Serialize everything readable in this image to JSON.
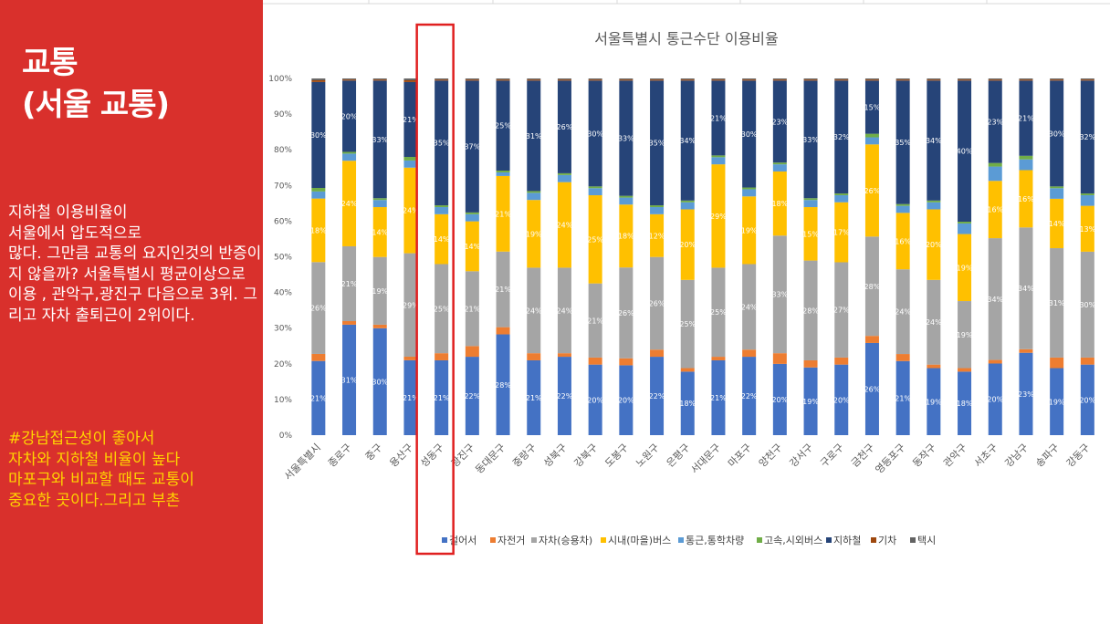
{
  "slide": {
    "title_line1": "교통",
    "title_line2": "(서울 교통)",
    "body": "지하철 이용비율이\n서울에서 압도적으로\n많다. 그만큼 교통의 요지인것의 반증이지 않을까? 서울특별시 평균이상으로 이용 , 관악구,광진구 다음으로 3위. 그리고 자차 출퇴근이 2위이다.",
    "highlight": "#강남접근성이 좋아서\n자차와 지하철 비율이 높다\n마포구와 비교할 때도 교통이\n중요한 곳이다.그리고 부촌",
    "panel_color": "#d9302c",
    "highlight_color": "#ffd400",
    "highlight_box_color": "#e02020"
  },
  "chart_data": {
    "type": "bar",
    "stacked": true,
    "percent": true,
    "title": "서울특별시 통근수단 이용비율",
    "ylim": [
      0,
      100
    ],
    "y_ticks": [
      "0%",
      "10%",
      "20%",
      "30%",
      "40%",
      "50%",
      "60%",
      "70%",
      "80%",
      "90%",
      "100%"
    ],
    "grid": false,
    "legend_position": "bottom",
    "highlighted_category": "성동구",
    "categories": [
      "서울특별시",
      "종로구",
      "중구",
      "용산구",
      "성동구",
      "광진구",
      "동대문구",
      "중랑구",
      "성북구",
      "강북구",
      "도봉구",
      "노원구",
      "은평구",
      "서대문구",
      "마포구",
      "양천구",
      "강서구",
      "구로구",
      "금천구",
      "영등포구",
      "동작구",
      "관악구",
      "서초구",
      "강남구",
      "송파구",
      "강동구"
    ],
    "series": [
      {
        "name": "걸어서",
        "color": "#4472c4",
        "values": [
          21,
          31,
          30,
          21,
          21,
          22,
          28,
          21,
          22,
          20,
          20,
          22,
          18,
          21,
          22,
          20,
          19,
          20,
          26,
          21,
          19,
          18,
          20,
          23,
          19,
          20
        ],
        "labels": [
          "21%",
          "31%",
          "30%",
          "21%",
          "21%",
          "22%",
          "28%",
          "21%",
          "22%",
          "20%",
          "20%",
          "22%",
          "18%",
          "21%",
          "22%",
          "20%",
          "19%",
          "20%",
          "26%",
          "21%",
          "19%",
          "18%",
          "20%",
          "23%",
          "19%",
          "20%"
        ]
      },
      {
        "name": "자전거",
        "color": "#ed7d31",
        "values": [
          2,
          1,
          1,
          1,
          2,
          3,
          2,
          2,
          1,
          2,
          2,
          2,
          1,
          1,
          2,
          3,
          2,
          2,
          2,
          2,
          1,
          1,
          1,
          1,
          3,
          2
        ]
      },
      {
        "name": "자차(승용차)",
        "color": "#a5a5a5",
        "values": [
          26,
          21,
          19,
          29,
          25,
          21,
          21,
          24,
          24,
          21,
          26,
          26,
          25,
          25,
          24,
          33,
          28,
          27,
          28,
          24,
          24,
          19,
          34,
          34,
          31,
          30
        ],
        "labels": [
          "26%",
          "21%",
          "19%",
          "29%",
          "25%",
          "21%",
          "21%",
          "24%",
          "24%",
          "21%",
          "26%",
          "26%",
          "25%",
          "25%",
          "24%",
          "33%",
          "28%",
          "27%",
          "28%",
          "24%",
          "24%",
          "19%",
          "34%",
          "34%",
          "31%",
          "30%"
        ]
      },
      {
        "name": "시내(마을)버스",
        "color": "#ffc000",
        "values": [
          18,
          24,
          14,
          24,
          14,
          14,
          21,
          19,
          24,
          25,
          18,
          12,
          20,
          29,
          19,
          18,
          15,
          17,
          26,
          16,
          20,
          19,
          16,
          16,
          14,
          13
        ],
        "labels": [
          "18%",
          "24%",
          "14%",
          "24%",
          "14%",
          "14%",
          "21%",
          "19%",
          "24%",
          "25%",
          "18%",
          "12%",
          "20%",
          "29%",
          "19%",
          "18%",
          "15%",
          "17%",
          "26%",
          "16%",
          "20%",
          "19%",
          "16%",
          "16%",
          "14%",
          "13%"
        ]
      },
      {
        "name": "통근,통학차량",
        "color": "#5b9bd5",
        "values": [
          2,
          2,
          2,
          2,
          2,
          2,
          1,
          2,
          2,
          2,
          2,
          2,
          2,
          2,
          2,
          2,
          2,
          2,
          2,
          2,
          2,
          3,
          4,
          3,
          3,
          3
        ]
      },
      {
        "name": "고속,시외버스",
        "color": "#70ad47",
        "values": [
          1,
          0.5,
          0.5,
          1,
          0.5,
          0.5,
          0.5,
          0.5,
          0.5,
          0.5,
          0.5,
          0.5,
          0.5,
          0.5,
          0.5,
          0.5,
          0.5,
          0.5,
          1,
          0.5,
          0.5,
          0.5,
          1,
          1,
          0.5,
          0.5
        ]
      },
      {
        "name": "지하철",
        "color": "#264478",
        "values": [
          30,
          20,
          33,
          21,
          35,
          37,
          25,
          31,
          26,
          30,
          33,
          35,
          34,
          21,
          30,
          23,
          33,
          32,
          15,
          35,
          34,
          40,
          23,
          21,
          30,
          32
        ],
        "labels": [
          "30%",
          "20%",
          "33%",
          "21%",
          "35%",
          "37%",
          "25%",
          "31%",
          "26%",
          "30%",
          "33%",
          "35%",
          "34%",
          "21%",
          "30%",
          "23%",
          "33%",
          "32%",
          "15%",
          "35%",
          "34%",
          "40%",
          "23%",
          "21%",
          "30%",
          "32%"
        ]
      },
      {
        "name": "기차",
        "color": "#9e480e",
        "values": [
          0.5,
          0.3,
          0.3,
          0.5,
          0.3,
          0.3,
          0.3,
          0.3,
          0.3,
          0.3,
          0.3,
          0.3,
          0.3,
          0.3,
          0.3,
          0.3,
          0.3,
          0.3,
          0.3,
          0.3,
          0.3,
          0.3,
          0.3,
          0.3,
          0.3,
          0.3
        ]
      },
      {
        "name": "택시",
        "color": "#636363",
        "values": [
          0.5,
          0.3,
          0.3,
          0.5,
          0.3,
          0.3,
          0.3,
          0.3,
          0.3,
          0.3,
          0.3,
          0.3,
          0.3,
          0.3,
          0.3,
          0.3,
          0.3,
          0.3,
          0.3,
          0.3,
          0.3,
          0.3,
          0.3,
          0.3,
          0.3,
          0.3
        ]
      }
    ]
  }
}
